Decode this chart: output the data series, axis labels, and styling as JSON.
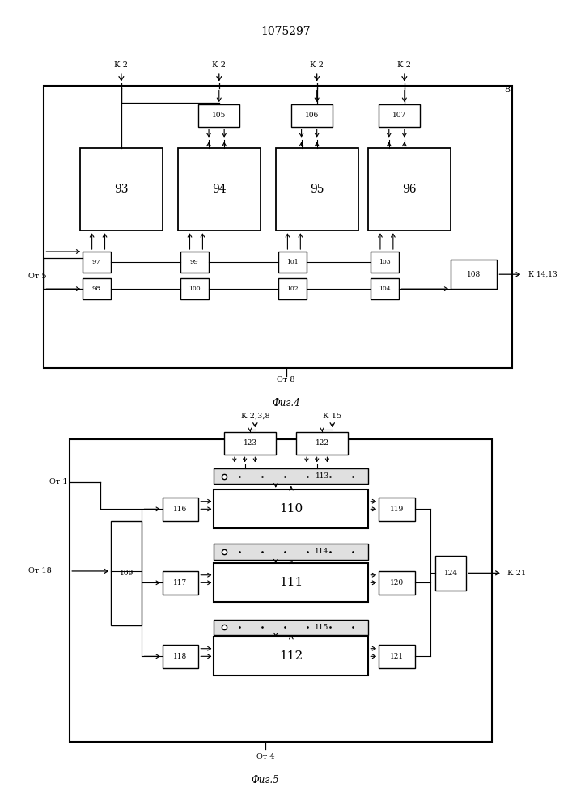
{
  "title": "1075297",
  "fig4_label": "Фиг.4",
  "fig5_label": "Фиг.5",
  "bg": "#ffffff",
  "lc": "#000000"
}
